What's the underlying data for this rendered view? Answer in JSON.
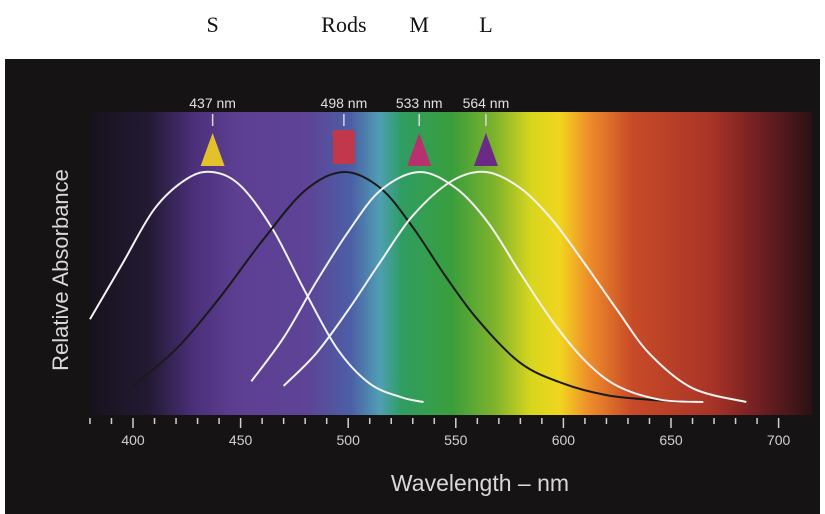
{
  "top_labels": [
    {
      "text": "S",
      "wavelength": 437
    },
    {
      "text": "Rods",
      "wavelength": 498
    },
    {
      "text": "M",
      "wavelength": 533
    },
    {
      "text": "L",
      "wavelength": 564
    }
  ],
  "chart_data": {
    "type": "line",
    "title": "",
    "xlabel": "Wavelength – nm",
    "ylabel": "Relative Absorbance",
    "xlim": [
      380,
      710
    ],
    "ylim": [
      0,
      1
    ],
    "x_ticks": [
      400,
      450,
      500,
      550,
      600,
      650,
      700
    ],
    "x_minor_step": 10,
    "y_ticks": [],
    "grid": false,
    "legend": "none",
    "background": "visible-spectrum",
    "series": [
      {
        "peak": 437,
        "peak_label": "437 nm",
        "marker": "triangle",
        "marker_color": "#e3c12b",
        "line_color": "#f2f2f2",
        "x": [
          380,
          395,
          410,
          425,
          437,
          450,
          465,
          480,
          495,
          510,
          525,
          535
        ],
        "y": [
          0.36,
          0.6,
          0.84,
          0.97,
          1.0,
          0.94,
          0.75,
          0.48,
          0.23,
          0.08,
          0.02,
          0.0
        ]
      },
      {
        "peak": 498,
        "peak_label": "498 nm",
        "marker": "rectangle",
        "marker_color": "#c0384a",
        "line_color": "#1a1a1a",
        "x": [
          400,
          420,
          440,
          460,
          480,
          498,
          515,
          530,
          545,
          560,
          580,
          600,
          620,
          640,
          660
        ],
        "y": [
          0.07,
          0.23,
          0.45,
          0.7,
          0.92,
          1.0,
          0.93,
          0.76,
          0.55,
          0.36,
          0.17,
          0.08,
          0.03,
          0.01,
          0.0
        ]
      },
      {
        "peak": 533,
        "peak_label": "533 nm",
        "marker": "triangle",
        "marker_color": "#b8306e",
        "line_color": "#f2f2f2",
        "x": [
          455,
          470,
          485,
          500,
          515,
          533,
          550,
          565,
          580,
          595,
          610,
          625,
          645,
          665
        ],
        "y": [
          0.09,
          0.28,
          0.52,
          0.74,
          0.92,
          1.0,
          0.93,
          0.78,
          0.56,
          0.35,
          0.18,
          0.07,
          0.01,
          0.0
        ]
      },
      {
        "peak": 564,
        "peak_label": "564 nm",
        "marker": "triangle",
        "marker_color": "#6a2a86",
        "line_color": "#f2f2f2",
        "x": [
          470,
          485,
          500,
          515,
          530,
          548,
          564,
          580,
          595,
          610,
          625,
          640,
          660,
          685
        ],
        "y": [
          0.07,
          0.21,
          0.4,
          0.61,
          0.81,
          0.96,
          1.0,
          0.93,
          0.79,
          0.6,
          0.4,
          0.21,
          0.06,
          0.0
        ]
      }
    ]
  }
}
